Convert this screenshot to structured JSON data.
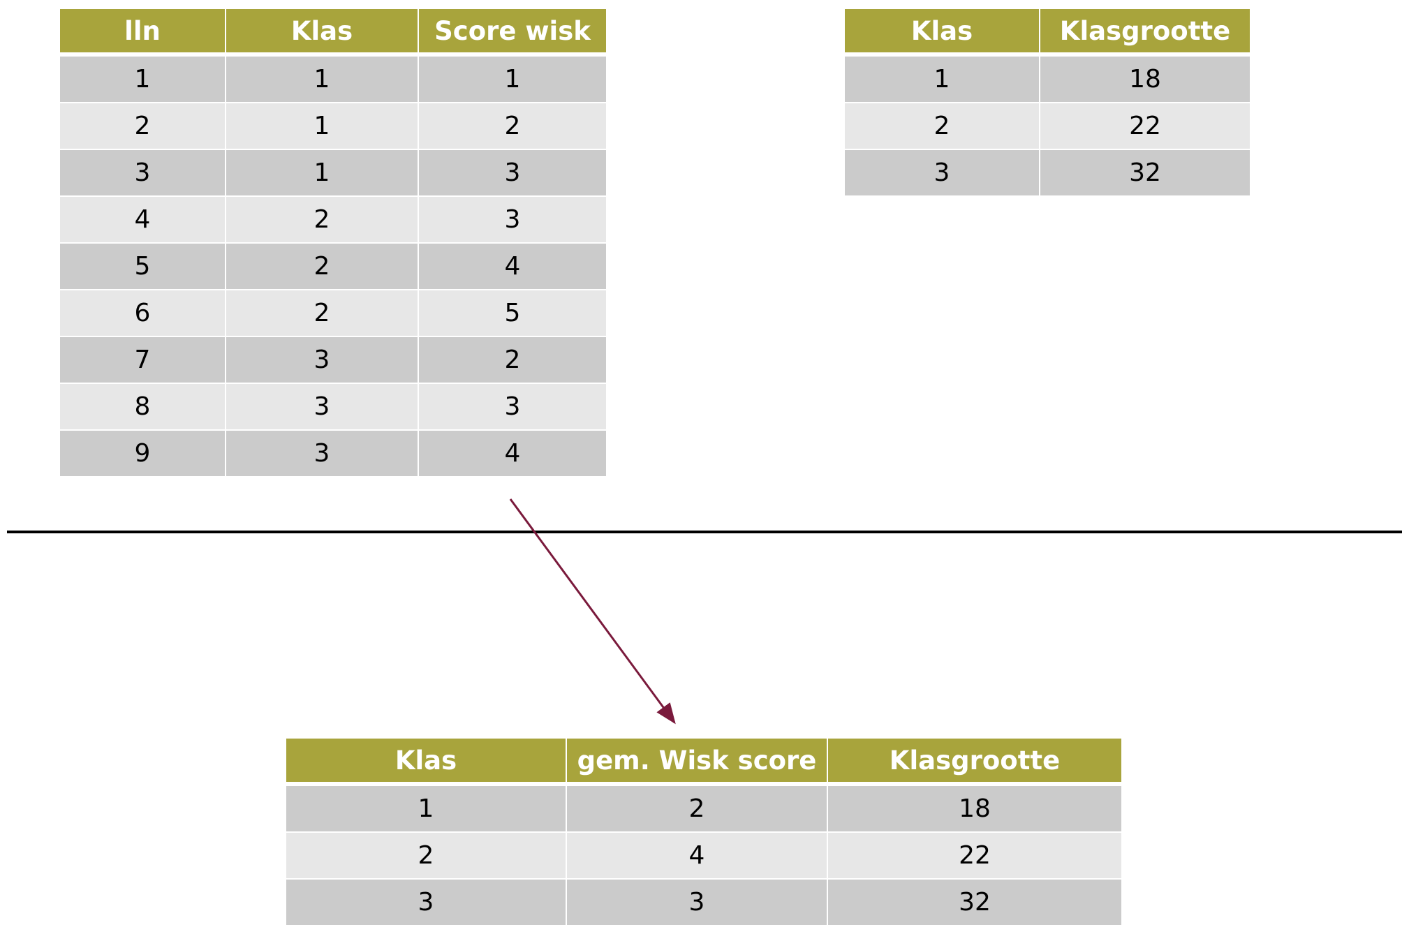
{
  "leerlingen_table": {
    "headers": [
      "lln",
      "Klas",
      "Score wisk"
    ],
    "rows": [
      [
        "1",
        "1",
        "1"
      ],
      [
        "2",
        "1",
        "2"
      ],
      [
        "3",
        "1",
        "3"
      ],
      [
        "4",
        "2",
        "3"
      ],
      [
        "5",
        "2",
        "4"
      ],
      [
        "6",
        "2",
        "5"
      ],
      [
        "7",
        "3",
        "2"
      ],
      [
        "8",
        "3",
        "3"
      ],
      [
        "9",
        "3",
        "4"
      ]
    ]
  },
  "klasgrootte_table": {
    "headers": [
      "Klas",
      "Klasgrootte"
    ],
    "rows": [
      [
        "1",
        "18"
      ],
      [
        "2",
        "22"
      ],
      [
        "3",
        "32"
      ]
    ]
  },
  "resultaat_table": {
    "headers": [
      "Klas",
      "gem. Wisk score",
      "Klasgrootte"
    ],
    "rows": [
      [
        "1",
        "2",
        "18"
      ],
      [
        "2",
        "4",
        "22"
      ],
      [
        "3",
        "3",
        "32"
      ]
    ]
  },
  "colors": {
    "header_bg": "#a8a43c",
    "row_dark": "#cbcbcb",
    "row_light": "#e7e7e7",
    "arrow": "#7a1a3c",
    "divider": "#000000"
  }
}
